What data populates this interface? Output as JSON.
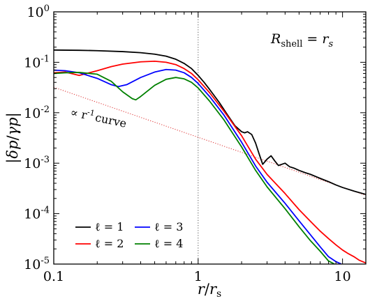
{
  "chart_data": {
    "type": "line",
    "xscale": "log",
    "yscale": "log",
    "xlim": [
      0.1,
      14.5
    ],
    "ylim": [
      1e-05,
      1
    ],
    "xlabel": "r/r_s",
    "ylabel": "|δp/γp|",
    "x_ticks": [
      {
        "value": 0.1,
        "label": "0.1"
      },
      {
        "value": 1,
        "label": "1"
      },
      {
        "value": 10,
        "label": "10"
      }
    ],
    "y_ticks": [
      {
        "value": 1,
        "base": "10",
        "exp": "0"
      },
      {
        "value": 0.1,
        "base": "10",
        "exp": "-1"
      },
      {
        "value": 0.01,
        "base": "10",
        "exp": "-2"
      },
      {
        "value": 0.001,
        "base": "10",
        "exp": "-3"
      },
      {
        "value": 0.0001,
        "base": "10",
        "exp": "-4"
      },
      {
        "value": 1e-05,
        "base": "10",
        "exp": "-5"
      }
    ],
    "shell_label": "R_shell = r_s",
    "vline_x": 1,
    "reference_curve": {
      "label": "∝ r^-1 curve",
      "label_text": "∝ r",
      "label_sup": "-1",
      "label_tail": "curve",
      "color": "#e04040",
      "x": [
        0.1,
        14.5
      ],
      "y": [
        0.032,
        0.00023
      ]
    },
    "series": [
      {
        "name": "ℓ = 1",
        "color": "#000000",
        "x": [
          0.1,
          0.15,
          0.2,
          0.3,
          0.4,
          0.5,
          0.6,
          0.7,
          0.8,
          0.9,
          1.0,
          1.1,
          1.2,
          1.4,
          1.6,
          1.8,
          2.0,
          2.1,
          2.2,
          2.35,
          2.5,
          2.65,
          2.8,
          3.0,
          3.2,
          3.4,
          3.6,
          3.8,
          4.0,
          4.3,
          4.6,
          5.0,
          5.5,
          6.0,
          7.0,
          8.0,
          9.0,
          10.0,
          12.0,
          14.5
        ],
        "y": [
          0.175,
          0.173,
          0.17,
          0.163,
          0.155,
          0.145,
          0.132,
          0.115,
          0.095,
          0.075,
          0.055,
          0.04,
          0.029,
          0.016,
          0.009,
          0.0055,
          0.0042,
          0.004,
          0.0042,
          0.0037,
          0.0025,
          0.0015,
          0.00095,
          0.0012,
          0.0014,
          0.0011,
          0.0009,
          0.00095,
          0.001,
          0.00085,
          0.0008,
          0.00072,
          0.00065,
          0.0006,
          0.0005,
          0.00043,
          0.00037,
          0.00033,
          0.00028,
          0.00024
        ]
      },
      {
        "name": "ℓ = 2",
        "color": "#ff0000",
        "x": [
          0.1,
          0.12,
          0.15,
          0.2,
          0.25,
          0.3,
          0.4,
          0.5,
          0.6,
          0.7,
          0.8,
          0.9,
          1.0,
          1.2,
          1.5,
          2.0,
          2.5,
          3.0,
          4.0,
          5.0,
          6.0,
          7.0,
          8.0,
          9.0,
          10.0,
          11.0,
          12.0,
          13.0,
          14.5
        ],
        "y": [
          0.062,
          0.064,
          0.055,
          0.068,
          0.082,
          0.092,
          0.102,
          0.105,
          0.1,
          0.09,
          0.075,
          0.06,
          0.045,
          0.025,
          0.011,
          0.0035,
          0.0012,
          0.0006,
          0.00025,
          0.00012,
          7e-05,
          4.5e-05,
          3.2e-05,
          2.4e-05,
          1.9e-05,
          1.6e-05,
          1.4e-05,
          1.2e-05,
          1.05e-05
        ]
      },
      {
        "name": "ℓ = 3",
        "color": "#0000ff",
        "x": [
          0.1,
          0.12,
          0.15,
          0.2,
          0.25,
          0.28,
          0.32,
          0.4,
          0.5,
          0.6,
          0.7,
          0.8,
          0.9,
          1.0,
          1.2,
          1.5,
          2.0,
          2.5,
          3.0,
          4.0,
          5.0,
          6.0,
          7.0,
          8.0,
          9.0,
          9.8
        ],
        "y": [
          0.07,
          0.068,
          0.062,
          0.048,
          0.036,
          0.033,
          0.036,
          0.05,
          0.064,
          0.072,
          0.07,
          0.062,
          0.05,
          0.038,
          0.021,
          0.0092,
          0.0026,
          0.00088,
          0.00042,
          0.00016,
          7.2e-05,
          3.8e-05,
          2.2e-05,
          1.4e-05,
          1.12e-05,
          1e-05
        ]
      },
      {
        "name": "ℓ = 4",
        "color": "#008000",
        "x": [
          0.1,
          0.12,
          0.15,
          0.2,
          0.25,
          0.3,
          0.35,
          0.37,
          0.4,
          0.5,
          0.6,
          0.7,
          0.8,
          0.9,
          1.0,
          1.2,
          1.5,
          2.0,
          2.5,
          3.0,
          4.0,
          5.0,
          6.0,
          7.0,
          8.0,
          8.8
        ],
        "y": [
          0.06,
          0.062,
          0.063,
          0.058,
          0.042,
          0.026,
          0.019,
          0.018,
          0.021,
          0.035,
          0.046,
          0.05,
          0.047,
          0.04,
          0.031,
          0.017,
          0.0074,
          0.0021,
          0.00072,
          0.00034,
          0.000125,
          5.5e-05,
          2.9e-05,
          1.8e-05,
          1.15e-05,
          1e-05
        ]
      }
    ],
    "legend": {
      "placement": "lower-left",
      "entries": [
        "ℓ = 1",
        "ℓ = 2",
        "ℓ = 3",
        "ℓ = 4"
      ]
    }
  }
}
